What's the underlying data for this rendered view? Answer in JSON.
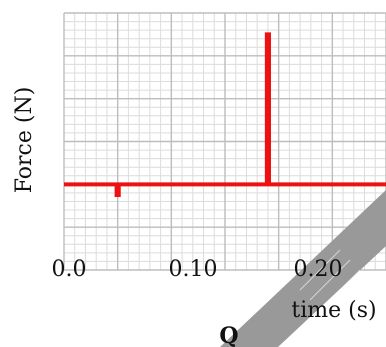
{
  "chart_data": {
    "type": "line",
    "title": "",
    "xlabel": "time (s)",
    "ylabel": "Force (N)",
    "xlim": [
      0.0,
      0.3
    ],
    "ylim": [
      -2,
      4
    ],
    "grid": true,
    "x_tick_labels": [
      "0.0",
      "0.10",
      "0.20"
    ],
    "x_ticks": [
      0.0,
      0.1,
      0.2
    ],
    "series": [
      {
        "color": "#ee1111",
        "points": [
          {
            "x": 0.0,
            "y": 0.0
          },
          {
            "x": 0.049,
            "y": 0.0
          },
          {
            "x": 0.049,
            "y": -0.25
          },
          {
            "x": 0.051,
            "y": -0.25
          },
          {
            "x": 0.051,
            "y": 0.0
          },
          {
            "x": 0.189,
            "y": 0.0
          },
          {
            "x": 0.189,
            "y": 3.5
          },
          {
            "x": 0.191,
            "y": 3.5
          },
          {
            "x": 0.191,
            "y": 0.0
          },
          {
            "x": 0.3,
            "y": 0.0
          }
        ]
      }
    ],
    "annotations": [
      {
        "text": "Q"
      }
    ]
  },
  "colors": {
    "grid_major": "#bdbdbd",
    "grid_minor": "#dcdcdc",
    "series": "#ee1111",
    "pointer": "#999999"
  }
}
